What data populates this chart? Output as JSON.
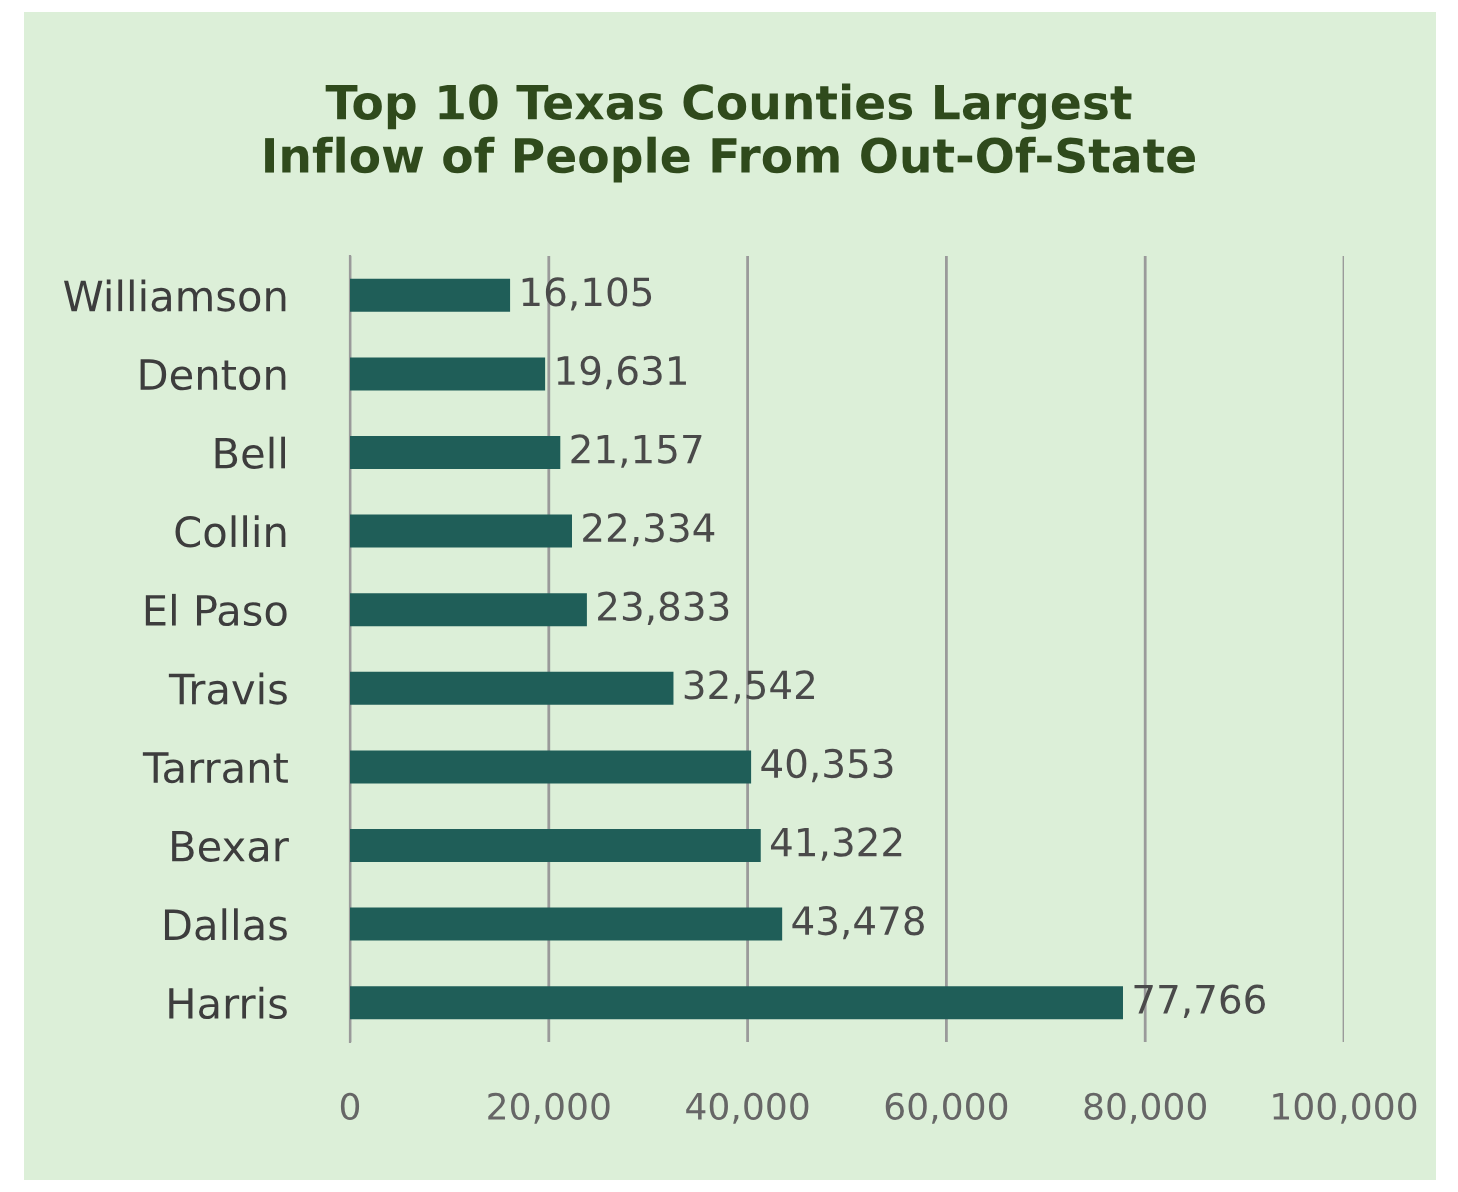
{
  "chart_data": {
    "type": "bar",
    "orientation": "horizontal",
    "title": "Top 10 Texas Counties Largest\nInflow of People From Out-Of-State",
    "categories": [
      "Williamson",
      "Denton",
      "Bell",
      "Collin",
      "El Paso",
      "Travis",
      "Tarrant",
      "Bexar",
      "Dallas",
      "Harris"
    ],
    "values": [
      16105,
      19631,
      21157,
      22334,
      23833,
      32542,
      40353,
      41322,
      43478,
      77766
    ],
    "value_labels": [
      "16,105",
      "19,631",
      "21,157",
      "22,334",
      "23,833",
      "32,542",
      "40,353",
      "41,322",
      "43,478",
      "77,766"
    ],
    "color": "#1f5e58",
    "xlim": [
      0,
      100000
    ],
    "xticks": [
      0,
      {
        "value": 20000,
        "label": "20,000"
      },
      {
        "value": 40000,
        "label": "40,000"
      },
      {
        "value": 60000,
        "label": "60,000"
      },
      {
        "value": 80000,
        "label": "80,000"
      },
      {
        "value": 100000,
        "label": "100,000"
      }
    ],
    "grid": "x"
  }
}
